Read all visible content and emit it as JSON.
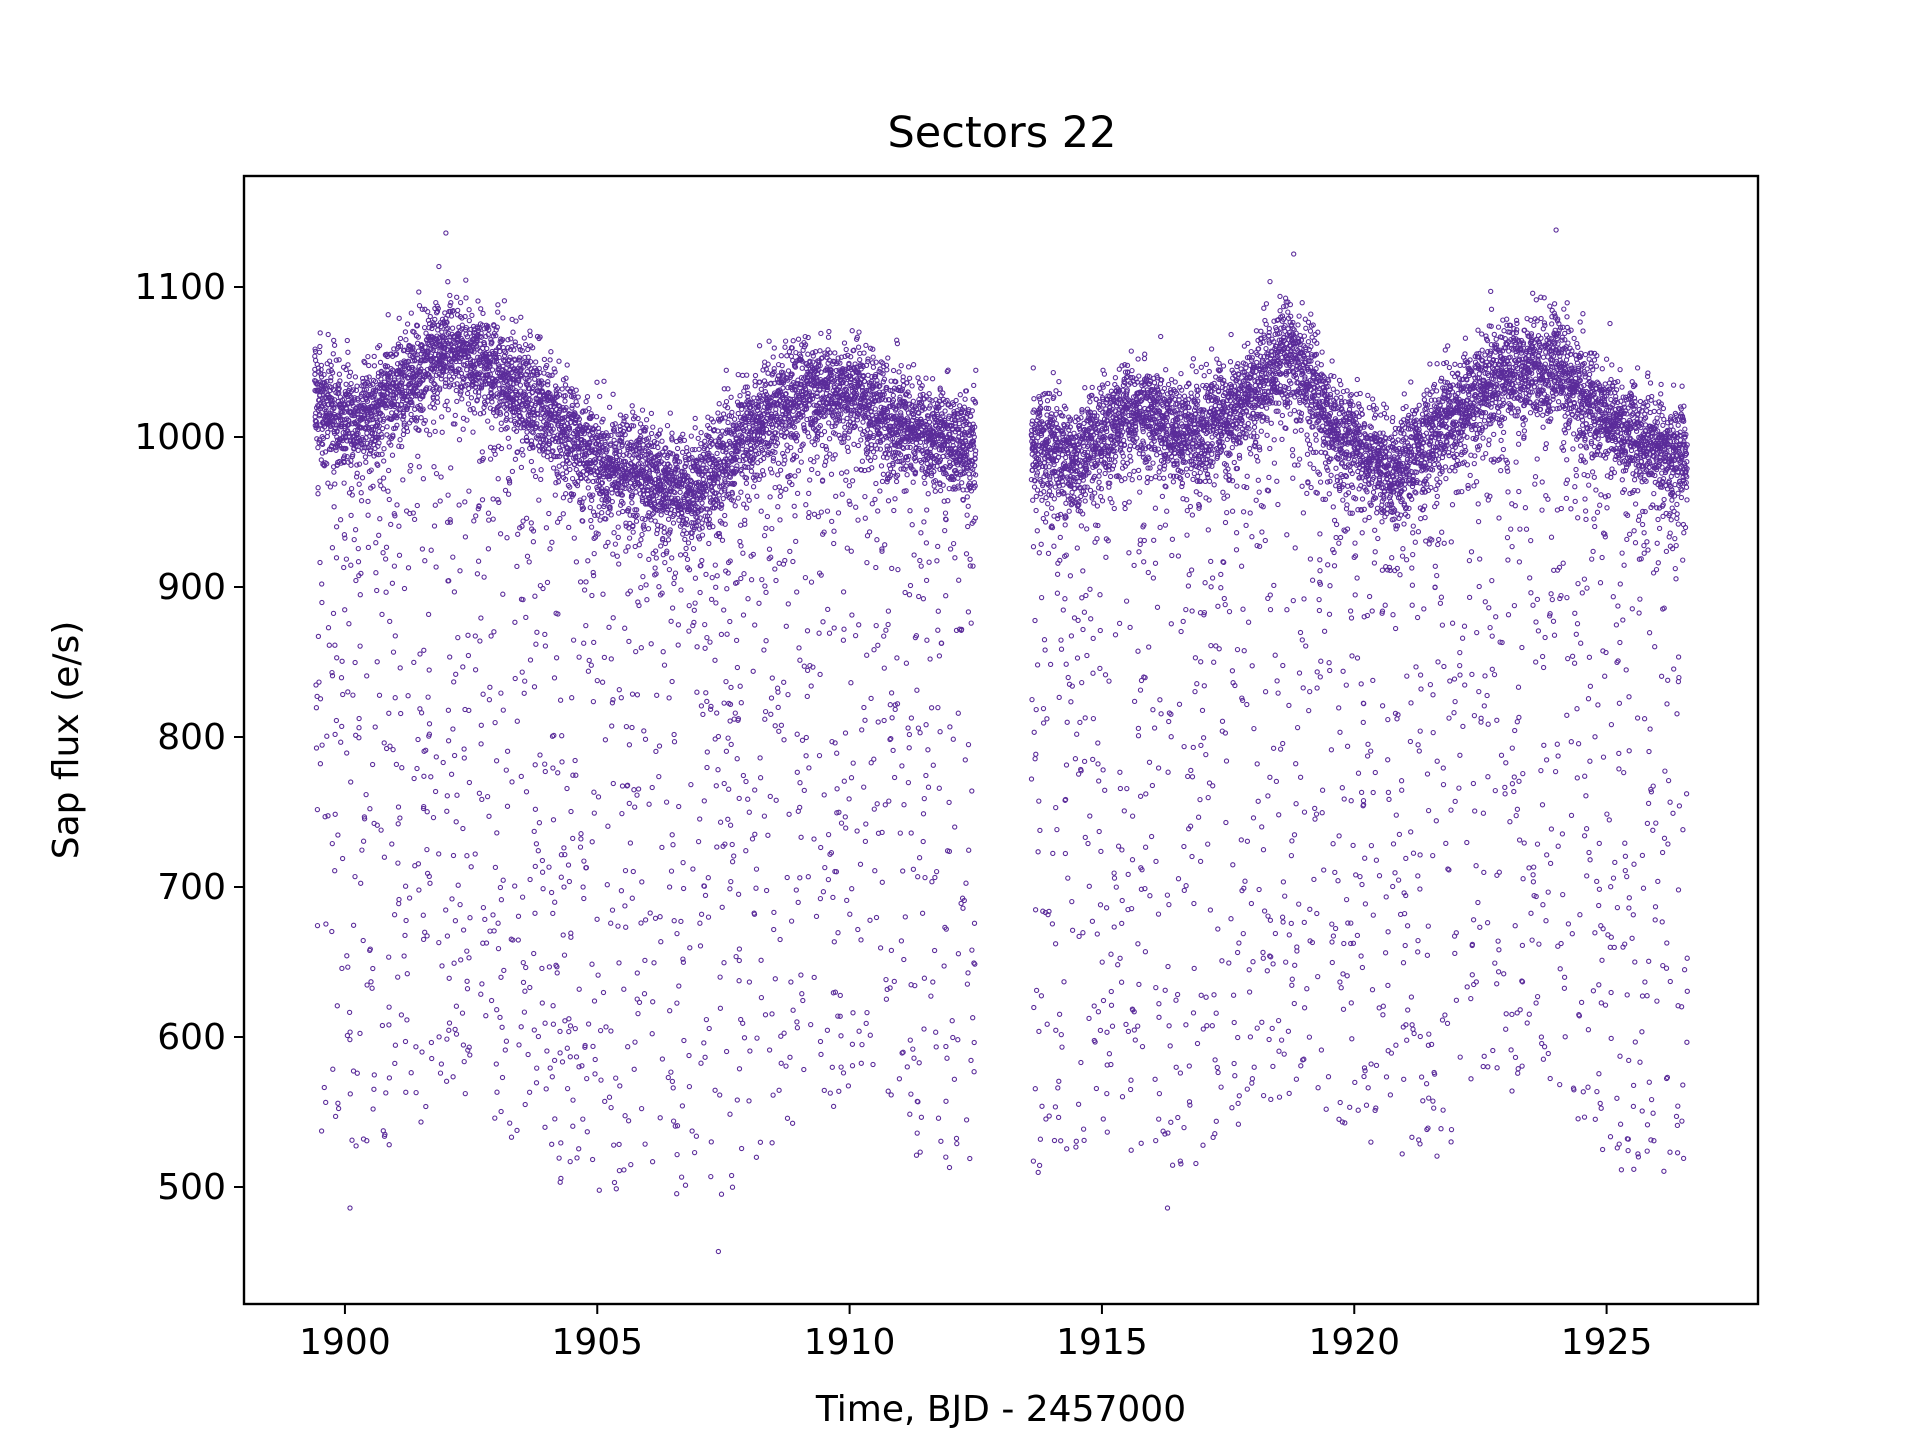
{
  "chart_data": {
    "type": "scatter",
    "title": "Sectors 22",
    "xlabel": "Time, BJD - 2457000",
    "ylabel": "Sap flux (e/s)",
    "xlim": [
      1898.0,
      1928.0
    ],
    "ylim": [
      422,
      1174
    ],
    "xticks": [
      1900,
      1905,
      1910,
      1915,
      1920,
      1925
    ],
    "yticks": [
      500,
      600,
      700,
      800,
      900,
      1000,
      1100
    ],
    "marker": "open-circle",
    "marker_color": "#5b2c9a",
    "grid": false,
    "legend": "none",
    "segments": [
      {
        "x_start": 1899.4,
        "x_end": 1912.5
      },
      {
        "x_start": 1913.6,
        "x_end": 1926.6
      }
    ],
    "series": [
      {
        "trend": [
          {
            "x": 1899.4,
            "y": 1030
          },
          {
            "x": 1900.2,
            "y": 1008
          },
          {
            "x": 1901.0,
            "y": 1030
          },
          {
            "x": 1902.0,
            "y": 1063
          },
          {
            "x": 1903.0,
            "y": 1045
          },
          {
            "x": 1904.0,
            "y": 1020
          },
          {
            "x": 1905.0,
            "y": 985
          },
          {
            "x": 1906.0,
            "y": 975
          },
          {
            "x": 1907.0,
            "y": 965
          },
          {
            "x": 1908.0,
            "y": 1005
          },
          {
            "x": 1909.0,
            "y": 1030
          },
          {
            "x": 1910.0,
            "y": 1032
          },
          {
            "x": 1911.0,
            "y": 1010
          },
          {
            "x": 1912.5,
            "y": 995
          },
          {
            "x": 1913.6,
            "y": 1000
          },
          {
            "x": 1914.5,
            "y": 985
          },
          {
            "x": 1915.5,
            "y": 1020
          },
          {
            "x": 1916.5,
            "y": 1005
          },
          {
            "x": 1917.5,
            "y": 1015
          },
          {
            "x": 1918.8,
            "y": 1060
          },
          {
            "x": 1919.5,
            "y": 1010
          },
          {
            "x": 1920.8,
            "y": 975
          },
          {
            "x": 1922.0,
            "y": 1020
          },
          {
            "x": 1923.0,
            "y": 1045
          },
          {
            "x": 1924.0,
            "y": 1050
          },
          {
            "x": 1925.0,
            "y": 1010
          },
          {
            "x": 1926.6,
            "y": 985
          }
        ],
        "outlier_floor": [
          {
            "x": 1899.4,
            "y": 510
          },
          {
            "x": 1901.0,
            "y": 520
          },
          {
            "x": 1902.0,
            "y": 560
          },
          {
            "x": 1903.0,
            "y": 530
          },
          {
            "x": 1904.5,
            "y": 495
          },
          {
            "x": 1906.0,
            "y": 495
          },
          {
            "x": 1907.3,
            "y": 480
          },
          {
            "x": 1908.5,
            "y": 530
          },
          {
            "x": 1909.5,
            "y": 545
          },
          {
            "x": 1910.5,
            "y": 555
          },
          {
            "x": 1911.5,
            "y": 505
          },
          {
            "x": 1912.5,
            "y": 510
          },
          {
            "x": 1913.6,
            "y": 505
          },
          {
            "x": 1915.0,
            "y": 530
          },
          {
            "x": 1916.5,
            "y": 510
          },
          {
            "x": 1917.5,
            "y": 525
          },
          {
            "x": 1918.8,
            "y": 565
          },
          {
            "x": 1920.0,
            "y": 520
          },
          {
            "x": 1921.5,
            "y": 515
          },
          {
            "x": 1923.0,
            "y": 560
          },
          {
            "x": 1924.0,
            "y": 570
          },
          {
            "x": 1925.0,
            "y": 510
          },
          {
            "x": 1926.6,
            "y": 505
          }
        ],
        "extreme_points": [
          {
            "x": 1902.0,
            "y": 1136
          },
          {
            "x": 1907.4,
            "y": 457
          },
          {
            "x": 1924.0,
            "y": 1138
          },
          {
            "x": 1918.8,
            "y": 1122
          },
          {
            "x": 1900.1,
            "y": 486
          },
          {
            "x": 1916.3,
            "y": 486
          }
        ]
      }
    ]
  }
}
